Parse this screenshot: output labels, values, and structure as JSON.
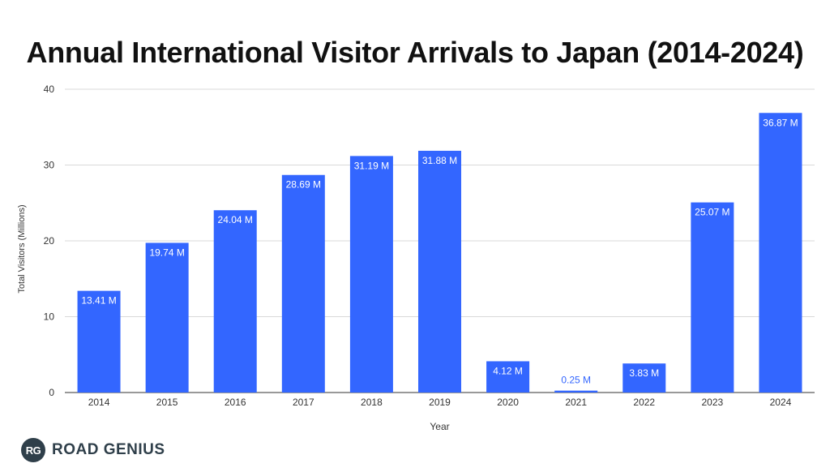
{
  "chart_data": {
    "type": "bar",
    "title": "Annual International Visitor Arrivals to Japan (2014-2024)",
    "xlabel": "Year",
    "ylabel": "Total Visitors (Millions)",
    "ylim": [
      0,
      40
    ],
    "yticks": [
      0,
      10,
      20,
      30,
      40
    ],
    "grid": true,
    "categories": [
      "2014",
      "2015",
      "2016",
      "2017",
      "2018",
      "2019",
      "2020",
      "2021",
      "2022",
      "2023",
      "2024"
    ],
    "values": [
      13.41,
      19.74,
      24.04,
      28.69,
      31.19,
      31.88,
      4.12,
      0.25,
      3.83,
      25.07,
      36.87
    ],
    "data_labels": [
      "13.41 M",
      "19.74 M",
      "24.04 M",
      "28.69 M",
      "31.19 M",
      "31.88 M",
      "4.12 M",
      "0.25 M",
      "3.83 M",
      "25.07 M",
      "36.87 M"
    ],
    "bar_color": "#3366ff"
  },
  "brand": {
    "logo_text": "RG",
    "name": "ROAD GENIUS"
  }
}
